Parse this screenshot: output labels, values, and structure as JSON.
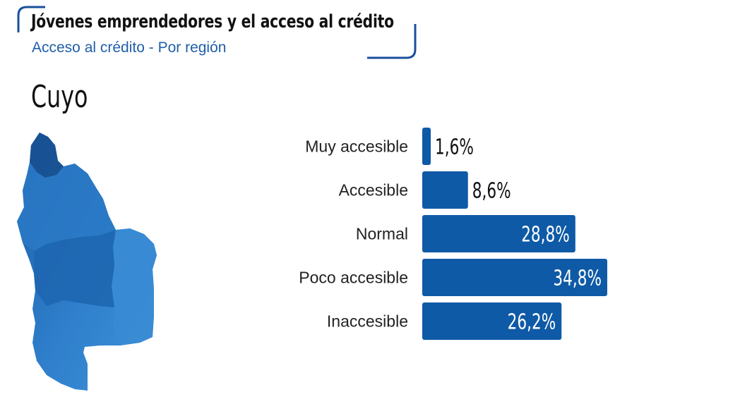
{
  "header": {
    "title": "Jóvenes emprendedores y el acceso al crédito",
    "subtitle": "Acceso al crédito - Por región"
  },
  "region": {
    "name": "Cuyo",
    "map_icon": "cuyo-region-map"
  },
  "colors": {
    "bar": "#0f5aa6",
    "frame": "#1b4f9c",
    "value_inside": "#ffffff",
    "value_outside": "#111111"
  },
  "chart_data": {
    "type": "bar",
    "orientation": "horizontal",
    "categories": [
      "Muy accesible",
      "Accesible",
      "Normal",
      "Poco accesible",
      "Inaccesible"
    ],
    "values": [
      1.6,
      8.6,
      28.8,
      34.8,
      26.2
    ],
    "value_labels": [
      "1,6%",
      "8,6%",
      "28,8%",
      "34,8%",
      "26,2%"
    ],
    "unit": "%",
    "xlim": [
      0,
      34.8
    ],
    "grid": false,
    "legend": "none"
  }
}
